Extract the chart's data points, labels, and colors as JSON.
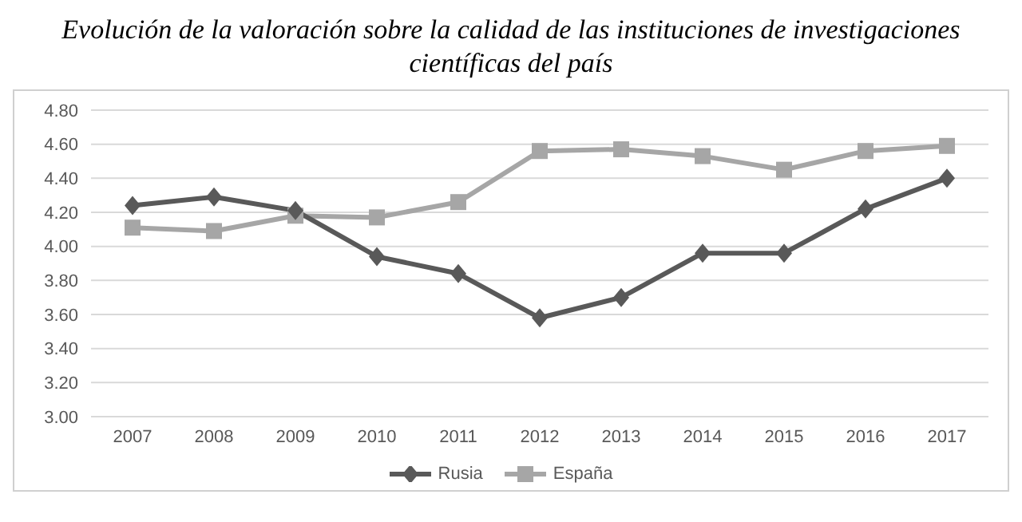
{
  "chart_data": {
    "type": "line",
    "title": "Evolución de la valoración sobre la calidad de las instituciones de investigaciones científicas del país",
    "categories": [
      "2007",
      "2008",
      "2009",
      "2010",
      "2011",
      "2012",
      "2013",
      "2014",
      "2015",
      "2016",
      "2017"
    ],
    "series": [
      {
        "name": "Rusia",
        "color": "#595959",
        "marker": "diamond",
        "values": [
          4.24,
          4.29,
          4.21,
          3.94,
          3.84,
          3.58,
          3.7,
          3.96,
          3.96,
          4.22,
          4.4
        ]
      },
      {
        "name": "España",
        "color": "#a6a6a6",
        "marker": "square",
        "values": [
          4.11,
          4.09,
          4.18,
          4.17,
          4.26,
          4.56,
          4.57,
          4.53,
          4.45,
          4.56,
          4.59
        ]
      }
    ],
    "ylim": [
      3,
      4.8
    ],
    "yticks": [
      {
        "value": 3,
        "label": "3.00"
      },
      {
        "value": 3.2,
        "label": "3.20"
      },
      {
        "value": 3.4,
        "label": "3.40"
      },
      {
        "value": 3.6,
        "label": "3.60"
      },
      {
        "value": 3.8,
        "label": "3.80"
      },
      {
        "value": 4,
        "label": "4.00"
      },
      {
        "value": 4.2,
        "label": "4.20"
      },
      {
        "value": 4.4,
        "label": "4.40"
      },
      {
        "value": 4.6,
        "label": "4.60"
      },
      {
        "value": 4.8,
        "label": "4.80"
      }
    ],
    "grid": "y",
    "legend": "bottom",
    "line_style": "solid"
  }
}
